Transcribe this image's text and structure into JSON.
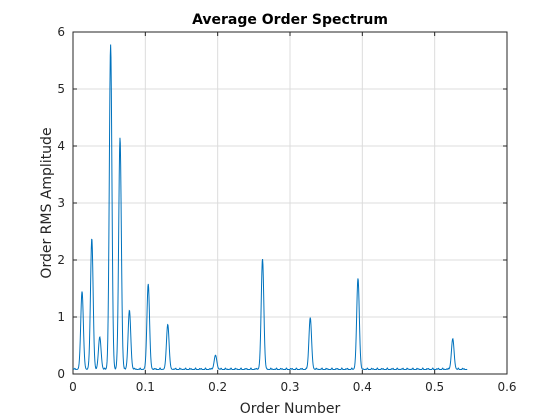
{
  "chart_data": {
    "type": "line",
    "title": "Average Order Spectrum",
    "xlabel": "Order Number",
    "ylabel": "Order RMS Amplitude",
    "xlim": [
      0,
      0.6
    ],
    "ylim": [
      0,
      6
    ],
    "grid": true,
    "x_ticks": [
      "0",
      "0.1",
      "0.2",
      "0.3",
      "0.4",
      "0.5",
      "0.6"
    ],
    "y_ticks": [
      "0",
      "1",
      "2",
      "3",
      "4",
      "5",
      "6"
    ],
    "series": [
      {
        "color": "#0072BD",
        "x_range": [
          0,
          0.545
        ],
        "baseline": 0.08,
        "peaks": [
          {
            "x": 0.0125,
            "y": 1.45
          },
          {
            "x": 0.026,
            "y": 2.38
          },
          {
            "x": 0.037,
            "y": 0.65
          },
          {
            "x": 0.052,
            "y": 5.78
          },
          {
            "x": 0.065,
            "y": 4.15
          },
          {
            "x": 0.078,
            "y": 1.12
          },
          {
            "x": 0.104,
            "y": 1.58
          },
          {
            "x": 0.131,
            "y": 0.87
          },
          {
            "x": 0.197,
            "y": 0.33
          },
          {
            "x": 0.262,
            "y": 2.02
          },
          {
            "x": 0.328,
            "y": 0.99
          },
          {
            "x": 0.394,
            "y": 1.68
          },
          {
            "x": 0.525,
            "y": 0.62
          }
        ]
      }
    ]
  }
}
